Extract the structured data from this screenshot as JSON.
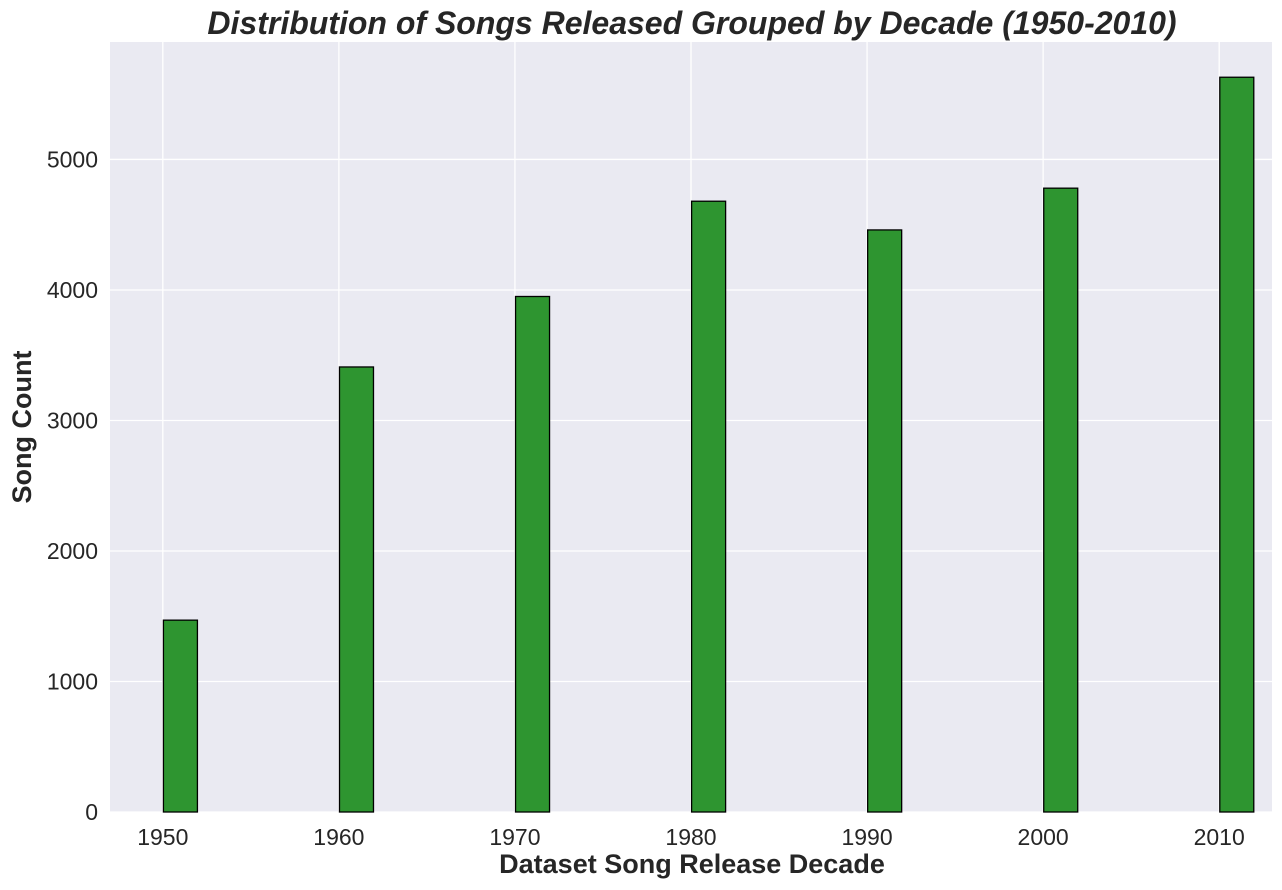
{
  "chart_data": {
    "type": "bar",
    "title": "Distribution of Songs Released Grouped by Decade (1950-2010)",
    "xlabel": "Dataset Song Release Decade",
    "ylabel": "Song Count",
    "x_ticks": [
      "1950",
      "1960",
      "1970",
      "1980",
      "1990",
      "2000",
      "2010"
    ],
    "y_ticks": [
      "0",
      "1000",
      "2000",
      "3000",
      "4000",
      "5000"
    ],
    "ylim": [
      0,
      5900
    ],
    "categories": [
      1950,
      1960,
      1970,
      1980,
      1990,
      2000,
      2010
    ],
    "values": [
      1470,
      3410,
      3950,
      4680,
      4460,
      4780,
      5630
    ],
    "grid": true,
    "colors": {
      "plot_background": "#EAEAF2",
      "grid": "#FFFFFF",
      "bar_fill": "#2E9530",
      "bar_edge": "#000000",
      "text": "#262626"
    }
  }
}
